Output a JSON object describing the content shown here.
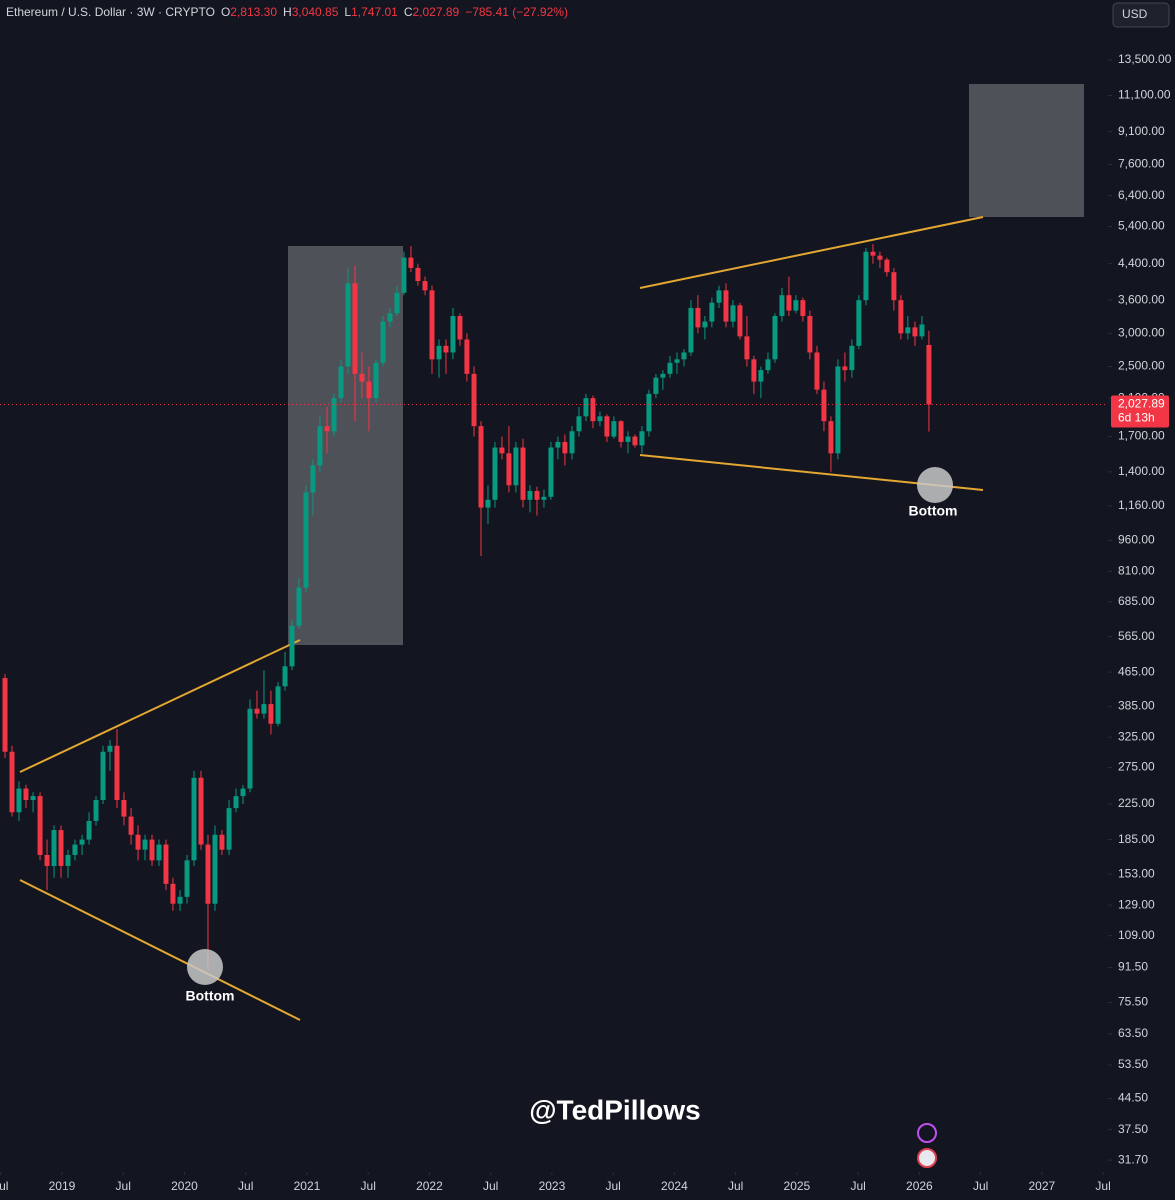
{
  "chart_data": {
    "type": "candlestick",
    "header": {
      "symbol": "Ethereum / U.S. Dollar · 3W · CRYPTO",
      "o_label": "O",
      "o": "2,813.30",
      "h_label": "H",
      "h": "3,040.85",
      "l_label": "L",
      "l": "1,747.01",
      "c_label": "C",
      "c": "2,027.89",
      "change": "−785.41 (−27.92%)"
    },
    "currency": "USD",
    "last_price_label": "2,027.89",
    "countdown": "6d 13h",
    "annotations": [
      "Bottom",
      "Bottom"
    ],
    "watermark": "@TedPillows",
    "log_scale": true,
    "up_color": "#089981",
    "down_color": "#f23645",
    "x": [
      2018.535,
      2018.592,
      2018.649,
      2018.706,
      2018.764,
      2018.821,
      2018.878,
      2018.935,
      2018.992,
      2019.049,
      2019.106,
      2019.164,
      2019.221,
      2019.278,
      2019.335,
      2019.392,
      2019.449,
      2019.506,
      2019.564,
      2019.621,
      2019.678,
      2019.735,
      2019.792,
      2019.849,
      2019.906,
      2019.964,
      2020.021,
      2020.078,
      2020.135,
      2020.192,
      2020.249,
      2020.306,
      2020.364,
      2020.421,
      2020.478,
      2020.535,
      2020.592,
      2020.649,
      2020.706,
      2020.764,
      2020.821,
      2020.878,
      2020.935,
      2020.992,
      2021.049,
      2021.106,
      2021.164,
      2021.221,
      2021.278,
      2021.335,
      2021.392,
      2021.449,
      2021.506,
      2021.564,
      2021.621,
      2021.678,
      2021.735,
      2021.792,
      2021.849,
      2021.906,
      2021.964,
      2022.021,
      2022.078,
      2022.135,
      2022.192,
      2022.249,
      2022.306,
      2022.364,
      2022.421,
      2022.478,
      2022.535,
      2022.592,
      2022.649,
      2022.706,
      2022.764,
      2022.821,
      2022.878,
      2022.935,
      2022.992,
      2023.049,
      2023.106,
      2023.164,
      2023.221,
      2023.278,
      2023.335,
      2023.392,
      2023.449,
      2023.506,
      2023.564,
      2023.621,
      2023.678,
      2023.735,
      2023.792,
      2023.849,
      2023.906,
      2023.964,
      2024.021,
      2024.078,
      2024.135,
      2024.192,
      2024.249,
      2024.306,
      2024.364,
      2024.421,
      2024.478,
      2024.535,
      2024.592,
      2024.649,
      2024.706,
      2024.764,
      2024.821,
      2024.878,
      2024.935,
      2024.992,
      2025.049,
      2025.106,
      2025.164,
      2025.221,
      2025.278,
      2025.335,
      2025.392,
      2025.449,
      2025.506,
      2025.564,
      2025.621,
      2025.678,
      2025.735,
      2025.792,
      2025.849,
      2025.906,
      2025.964,
      2026.021,
      2026.078
    ],
    "open": [
      450,
      300,
      215,
      245,
      230,
      235,
      170,
      160,
      195,
      160,
      170,
      180,
      185,
      205,
      230,
      300,
      310,
      230,
      210,
      190,
      175,
      185,
      165,
      180,
      145,
      130,
      135,
      165,
      260,
      180,
      130,
      190,
      175,
      220,
      235,
      245,
      380,
      370,
      390,
      350,
      430,
      480,
      600,
      740,
      1250,
      1450,
      1800,
      1750,
      2100,
      2500,
      3950,
      2400,
      2300,
      2100,
      2550,
      3200,
      3350,
      3750,
      4550,
      4300,
      4000,
      3800,
      2600,
      2800,
      2700,
      3300,
      2900,
      2400,
      1800,
      1150,
      1200,
      1600,
      1550,
      1300,
      1600,
      1200,
      1260,
      1200,
      1220,
      1600,
      1650,
      1550,
      1750,
      1900,
      2100,
      1850,
      1900,
      1700,
      1850,
      1650,
      1700,
      1620,
      1750,
      2150,
      2350,
      2400,
      2550,
      2600,
      2700,
      3450,
      3100,
      3200,
      3550,
      3800,
      3200,
      3500,
      2950,
      2600,
      2300,
      2450,
      2600,
      3300,
      3700,
      3400,
      3600,
      3300,
      2700,
      2200,
      1850,
      1550,
      2500,
      2450,
      2800,
      3600,
      4700,
      4600,
      4500,
      4200,
      3600,
      3000,
      3100,
      2950,
      2813.3
    ],
    "high": [
      460,
      310,
      255,
      250,
      240,
      240,
      185,
      200,
      200,
      175,
      185,
      190,
      215,
      235,
      310,
      320,
      340,
      240,
      220,
      200,
      190,
      190,
      185,
      185,
      150,
      140,
      170,
      270,
      270,
      190,
      200,
      195,
      230,
      245,
      250,
      400,
      420,
      470,
      420,
      440,
      520,
      620,
      780,
      1300,
      1500,
      1900,
      2000,
      2150,
      2600,
      4300,
      4350,
      2700,
      2500,
      2600,
      3300,
      3450,
      3900,
      4700,
      4850,
      4400,
      4100,
      3900,
      2900,
      2900,
      3450,
      3350,
      3000,
      2500,
      1850,
      1300,
      1650,
      1700,
      1800,
      1650,
      1680,
      1300,
      1290,
      1270,
      1650,
      1700,
      1720,
      1800,
      2000,
      2150,
      2130,
      1950,
      1920,
      1900,
      1860,
      1750,
      1720,
      1800,
      2200,
      2400,
      2450,
      2650,
      2700,
      2750,
      3600,
      3700,
      3300,
      3650,
      3900,
      3950,
      3600,
      3550,
      3300,
      2650,
      2500,
      2700,
      3350,
      3850,
      4100,
      3700,
      3650,
      3400,
      2800,
      2300,
      1900,
      2600,
      2700,
      2900,
      3700,
      4800,
      4900,
      4700,
      4550,
      4300,
      3700,
      3300,
      3200,
      3300,
      3040.85
    ],
    "low": [
      290,
      210,
      205,
      220,
      215,
      165,
      140,
      150,
      150,
      150,
      165,
      170,
      180,
      200,
      225,
      270,
      220,
      200,
      180,
      165,
      165,
      160,
      160,
      140,
      125,
      125,
      130,
      160,
      175,
      90,
      125,
      170,
      170,
      215,
      225,
      240,
      360,
      360,
      330,
      345,
      420,
      470,
      590,
      720,
      1100,
      1400,
      1550,
      1700,
      2050,
      2400,
      1850,
      2100,
      1750,
      2050,
      2500,
      3100,
      3300,
      3700,
      4200,
      3900,
      3700,
      2400,
      2350,
      2400,
      2600,
      2800,
      2300,
      1700,
      880,
      1050,
      1150,
      1500,
      1250,
      1250,
      1150,
      1120,
      1100,
      1150,
      1200,
      1500,
      1450,
      1500,
      1700,
      1850,
      1780,
      1800,
      1650,
      1680,
      1600,
      1550,
      1600,
      1550,
      1700,
      2100,
      2200,
      2350,
      2400,
      2500,
      2650,
      3000,
      2900,
      3100,
      3450,
      3100,
      3100,
      2900,
      2500,
      2150,
      2100,
      2400,
      2550,
      3200,
      3300,
      3350,
      3200,
      2600,
      2150,
      1750,
      1400,
      1500,
      2300,
      2350,
      2750,
      3500,
      4400,
      4300,
      4100,
      3400,
      2900,
      2900,
      2800,
      2900,
      1747.01
    ],
    "close": [
      300,
      215,
      245,
      230,
      235,
      170,
      160,
      195,
      160,
      170,
      180,
      185,
      205,
      230,
      300,
      310,
      230,
      210,
      190,
      175,
      185,
      165,
      180,
      145,
      130,
      135,
      165,
      260,
      180,
      130,
      190,
      175,
      220,
      235,
      245,
      380,
      370,
      390,
      350,
      430,
      480,
      600,
      740,
      1250,
      1450,
      1800,
      1750,
      2100,
      2500,
      3950,
      2400,
      2300,
      2100,
      2550,
      3200,
      3350,
      3750,
      4550,
      4300,
      4000,
      3800,
      2600,
      2800,
      2700,
      3300,
      2900,
      2400,
      1800,
      1150,
      1200,
      1600,
      1550,
      1300,
      1600,
      1200,
      1260,
      1200,
      1220,
      1600,
      1650,
      1550,
      1750,
      1900,
      2100,
      1850,
      1900,
      1700,
      1850,
      1650,
      1700,
      1620,
      1750,
      2150,
      2350,
      2400,
      2550,
      2600,
      2700,
      3450,
      3100,
      3200,
      3550,
      3800,
      3200,
      3500,
      2950,
      2600,
      2300,
      2450,
      2600,
      3300,
      3700,
      3400,
      3600,
      3300,
      2700,
      2200,
      1850,
      1550,
      2500,
      2450,
      2800,
      3600,
      4700,
      4600,
      4500,
      4200,
      3600,
      3000,
      3100,
      2950,
      3150,
      2027.89
    ],
    "xlim": [
      2018.494,
      2027.54
    ],
    "ylim": [
      29.7,
      18780
    ],
    "xticks": [
      {
        "value": 2018.5,
        "label": "Jul"
      },
      2019,
      {
        "value": 2019.5,
        "label": "Jul"
      },
      2020,
      {
        "value": 2020.5,
        "label": "Jul"
      },
      2021,
      {
        "value": 2021.5,
        "label": "Jul"
      },
      2022,
      {
        "value": 2022.5,
        "label": "Jul"
      },
      2023,
      {
        "value": 2023.5,
        "label": "Jul"
      },
      2024,
      {
        "value": 2024.5,
        "label": "Jul"
      },
      2025,
      {
        "value": 2025.5,
        "label": "Jul"
      },
      2026,
      {
        "value": 2026.5,
        "label": "Jul"
      },
      2027,
      {
        "value": 2027.5,
        "label": "Jul"
      }
    ],
    "yticks": [
      {
        "value": 13500,
        "label": "13,500.00"
      },
      {
        "value": 11100,
        "label": "11,100.00"
      },
      {
        "value": 9100,
        "label": "9,100.00"
      },
      {
        "value": 7600,
        "label": "7,600.00"
      },
      {
        "value": 6400,
        "label": "6,400.00"
      },
      {
        "value": 5400,
        "label": "5,400.00"
      },
      {
        "value": 4400,
        "label": "4,400.00"
      },
      {
        "value": 3600,
        "label": "3,600.00"
      },
      {
        "value": 3000,
        "label": "3,000.00"
      },
      {
        "value": 2500,
        "label": "2,500.00"
      },
      {
        "value": 2100,
        "label": "2,100.00"
      },
      {
        "value": 1700,
        "label": "1,700.00"
      },
      {
        "value": 1400,
        "label": "1,400.00"
      },
      {
        "value": 1160,
        "label": "1,160.00"
      },
      {
        "value": 960,
        "label": "960.00"
      },
      {
        "value": 810,
        "label": "810.00"
      },
      {
        "value": 685,
        "label": "685.00"
      },
      {
        "value": 565,
        "label": "565.00"
      },
      {
        "value": 465,
        "label": "465.00"
      },
      {
        "value": 385,
        "label": "385.00"
      },
      {
        "value": 325,
        "label": "325.00"
      },
      {
        "value": 275,
        "label": "275.00"
      },
      {
        "value": 225,
        "label": "225.00"
      },
      {
        "value": 185,
        "label": "185.00"
      },
      {
        "value": 153,
        "label": "153.00"
      },
      {
        "value": 129,
        "label": "129.00"
      },
      {
        "value": 109,
        "label": "109.00"
      },
      {
        "value": 91.5,
        "label": "91.50"
      },
      {
        "value": 75.5,
        "label": "75.50"
      },
      {
        "value": 63.5,
        "label": "63.50"
      },
      {
        "value": 53.5,
        "label": "53.50"
      },
      {
        "value": 44.5,
        "label": "44.50"
      },
      {
        "value": 37.5,
        "label": "37.50"
      },
      {
        "value": 31.7,
        "label": "31.70"
      }
    ]
  }
}
